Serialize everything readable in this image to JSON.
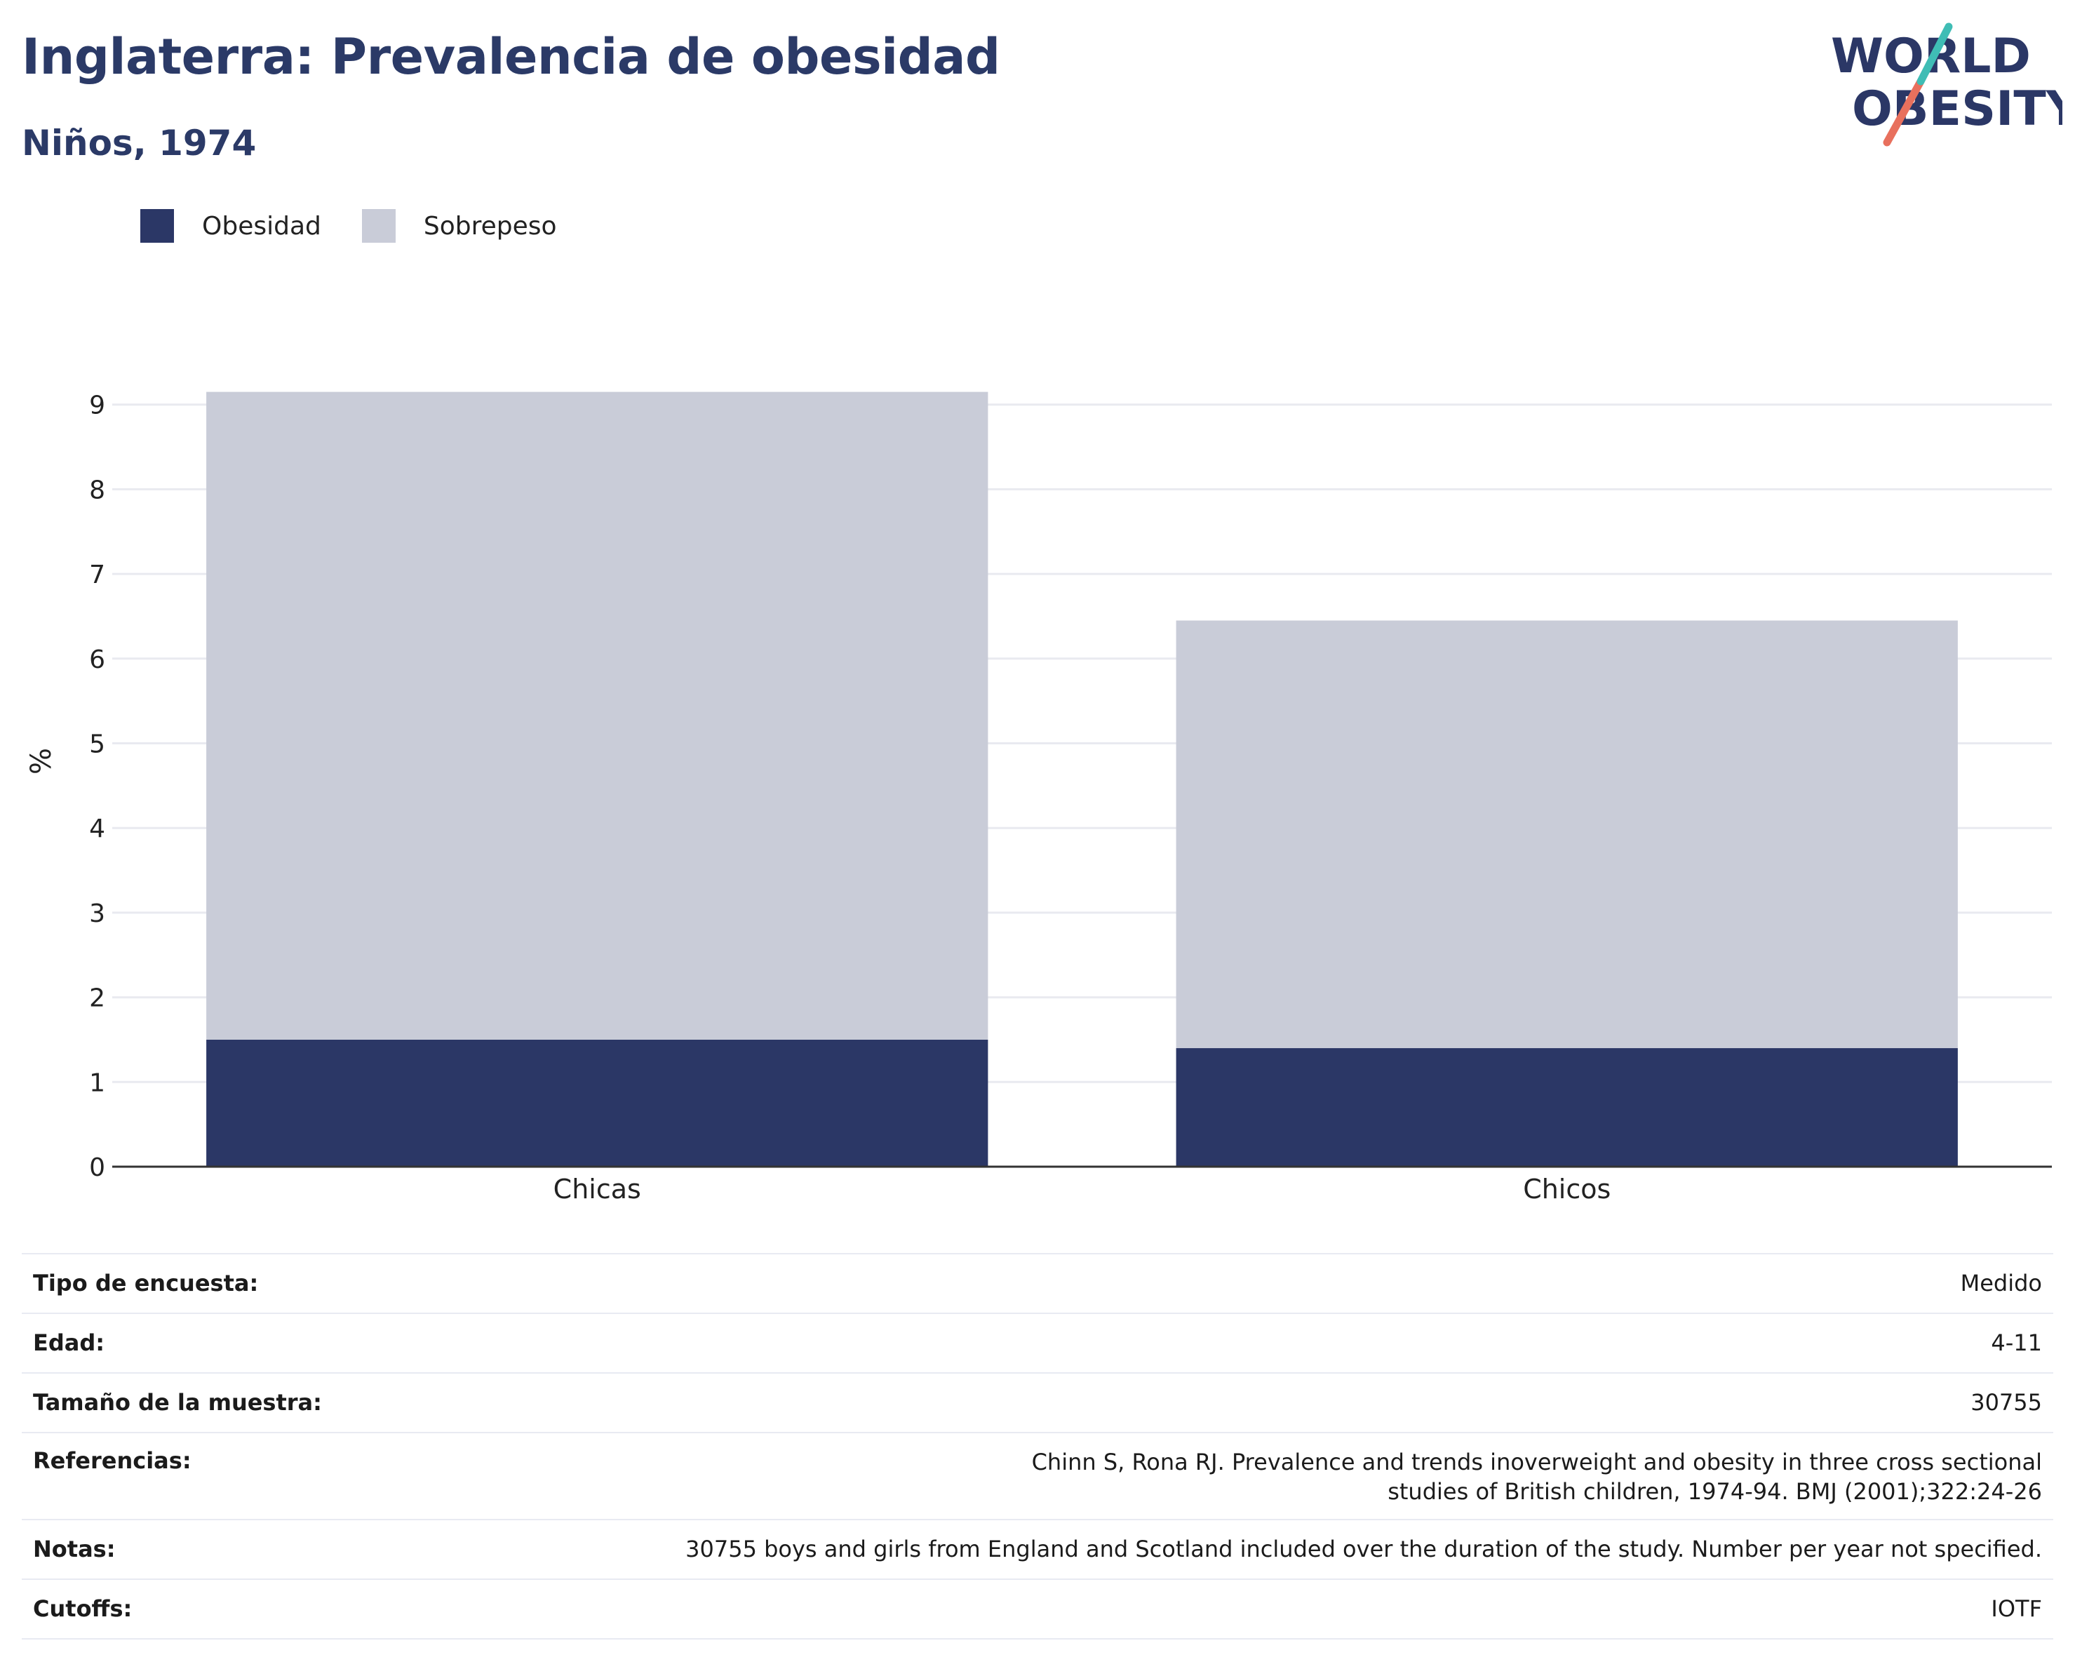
{
  "header": {
    "title": "Inglaterra: Prevalencia de obesidad",
    "subtitle": "Niños, 1974",
    "logo_text_line1": "WORLD",
    "logo_text_line2": "OBESITY"
  },
  "legend": [
    {
      "label": "Obesidad",
      "color": "#2b3766"
    },
    {
      "label": "Sobrepeso",
      "color": "#c9ccd8"
    }
  ],
  "chart_data": {
    "type": "bar",
    "stacked": true,
    "categories": [
      "Chicas",
      "Chicos"
    ],
    "series": [
      {
        "name": "Obesidad",
        "values": [
          1.5,
          1.4
        ],
        "color": "#2b3766"
      },
      {
        "name": "Sobrepeso",
        "values": [
          7.65,
          5.05
        ],
        "color": "#c9ccd8"
      }
    ],
    "totals": [
      9.15,
      6.45
    ],
    "ylabel": "%",
    "ylim": [
      0,
      9
    ],
    "yticks": [
      0,
      1,
      2,
      3,
      4,
      5,
      6,
      7,
      8,
      9
    ],
    "grid": true,
    "legend_position": "top-left"
  },
  "info": [
    {
      "key": "Tipo de encuesta:",
      "value": "Medido"
    },
    {
      "key": "Edad:",
      "value": "4-11"
    },
    {
      "key": "Tamaño de la muestra:",
      "value": "30755"
    },
    {
      "key": "Referencias:",
      "value": "Chinn S, Rona RJ. Prevalence and trends inoverweight and obesity in three cross sectional studies of British children, 1974-94. BMJ (2001);322:24-26"
    },
    {
      "key": "Notas:",
      "value": "30755 boys and girls from England and Scotland included over the duration of the study. Number per year not specified."
    },
    {
      "key": "Cutoffs:",
      "value": "IOTF"
    }
  ]
}
